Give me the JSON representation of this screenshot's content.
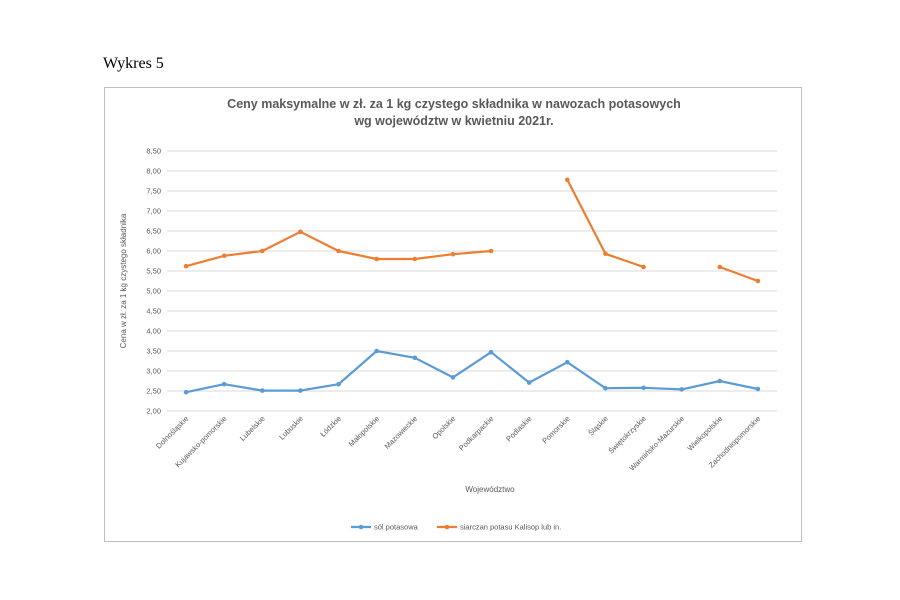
{
  "page_label": "Wykres 5",
  "chart_data": {
    "type": "line",
    "title": [
      "Ceny maksymalne w zł. za 1 kg czystego składnika w nawozach potasowych",
      "wg województw w kwietniu 2021r."
    ],
    "xlabel": "Województwo",
    "ylabel": "Cena w zł. za 1 kg czystego składnika",
    "ylim": [
      2.0,
      8.5
    ],
    "yticks": [
      "2,00",
      "2,50",
      "3,00",
      "3,50",
      "4,00",
      "4,50",
      "5,00",
      "5,50",
      "6,00",
      "6,50",
      "7,00",
      "7,50",
      "8,00",
      "8,50"
    ],
    "grid": true,
    "legend_position": "bottom",
    "categories": [
      "Dolnośląskie",
      "Kujawsko-pomorskie",
      "Lubelskie",
      "Lubuskie",
      "Łódzkie",
      "Małopolskie",
      "Mazowieckie",
      "Opolskie",
      "Podkarpackie",
      "Podlaskie",
      "Pomorskie",
      "Śląskie",
      "Świętokrzyskie",
      "Warmińsko-Mazurskie",
      "Wielkopolskie",
      "Zachodniopomorskie"
    ],
    "series": [
      {
        "name": "sól potasowa",
        "color": "#5b9bd5",
        "values": [
          2.47,
          2.67,
          2.51,
          2.51,
          2.67,
          3.5,
          3.33,
          2.84,
          3.47,
          2.71,
          3.22,
          2.57,
          2.58,
          2.54,
          2.75,
          2.55
        ]
      },
      {
        "name": "siarczan potasu Kalisop lub in.",
        "color": "#ed7d31",
        "values": [
          5.62,
          5.88,
          6.0,
          6.48,
          6.0,
          5.8,
          5.8,
          5.92,
          6.0,
          null,
          7.78,
          5.93,
          5.6,
          null,
          5.6,
          5.25
        ]
      }
    ]
  }
}
